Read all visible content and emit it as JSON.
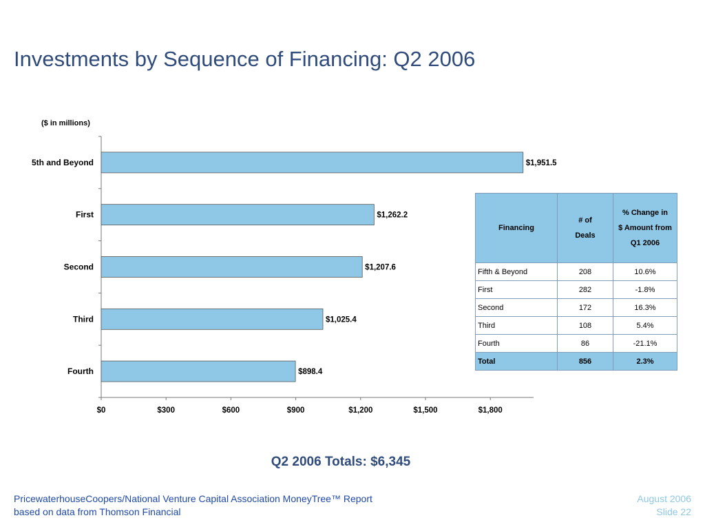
{
  "slide": {
    "title": "Investments by Sequence of Financing: Q2 2006",
    "units_note": "($ in millions)",
    "totals": "Q2 2006 Totals: $6,345",
    "footer_left": [
      "PricewaterhouseCoopers/National Venture Capital Association MoneyTree™ Report",
      "based on data from Thomson Financial"
    ],
    "footer_right": [
      "August 2006",
      "Slide 22"
    ]
  },
  "colors": {
    "bar": "#8fc8e6",
    "bar_stroke": "#555555",
    "title": "#2f4b7c",
    "footer_link": "#1f49a8",
    "footer_right": "#8fc8e6"
  },
  "chart_data": {
    "type": "bar",
    "orientation": "horizontal",
    "categories": [
      "5th and Beyond",
      "First",
      "Second",
      "Third",
      "Fourth"
    ],
    "values": [
      1951.5,
      1262.2,
      1207.6,
      1025.4,
      898.4
    ],
    "value_labels": [
      "$1,951.5",
      "$1,262.2",
      "$1,207.6",
      "$1,025.4",
      "$898.4"
    ],
    "xticks": [
      0,
      300,
      600,
      900,
      1200,
      1500,
      1800
    ],
    "xtick_labels": [
      "$0",
      "$300",
      "$600",
      "$900",
      "$1,200",
      "$1,500",
      "$1,800"
    ],
    "xlim": [
      0,
      2000
    ],
    "grid": false
  },
  "table": {
    "headers": [
      [
        "Financing"
      ],
      [
        "# of",
        "Deals"
      ],
      [
        "% Change in",
        "$ Amount from",
        "Q1 2006"
      ]
    ],
    "rows": [
      [
        "Fifth & Beyond",
        "208",
        "10.6%"
      ],
      [
        "First",
        "282",
        "-1.8%"
      ],
      [
        "Second",
        "172",
        "16.3%"
      ],
      [
        "Third",
        "108",
        "5.4%"
      ],
      [
        "Fourth",
        "86",
        "-21.1%"
      ]
    ],
    "total": [
      "Total",
      "856",
      "2.3%"
    ]
  }
}
